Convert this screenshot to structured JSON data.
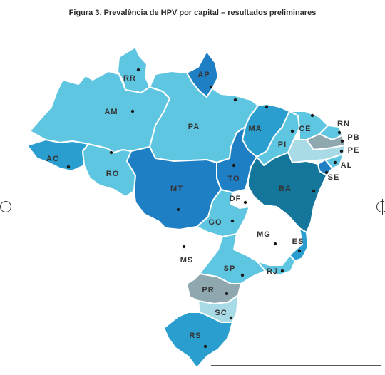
{
  "figure": {
    "title": "Figura 3. Prevalência de HPV por capital – resultados preliminares"
  },
  "colors": {
    "light": "#5fc6e1",
    "medium": "#2a9fcf",
    "dark": "#1f7fc4",
    "darkest": "#13769a",
    "gray": "#8fa8b0",
    "white": "#ffffff",
    "pale": "#a9dbe6"
  },
  "states": [
    {
      "abbr": "RR",
      "shade": "light"
    },
    {
      "abbr": "AP",
      "shade": "dark"
    },
    {
      "abbr": "AM",
      "shade": "light"
    },
    {
      "abbr": "PA",
      "shade": "light"
    },
    {
      "abbr": "MA",
      "shade": "medium"
    },
    {
      "abbr": "CE",
      "shade": "light"
    },
    {
      "abbr": "RN",
      "shade": "light"
    },
    {
      "abbr": "PB",
      "shade": "gray"
    },
    {
      "abbr": "PE",
      "shade": "pale"
    },
    {
      "abbr": "AL",
      "shade": "light"
    },
    {
      "abbr": "SE",
      "shade": "dark"
    },
    {
      "abbr": "PI",
      "shade": "light"
    },
    {
      "abbr": "AC",
      "shade": "medium"
    },
    {
      "abbr": "RO",
      "shade": "light"
    },
    {
      "abbr": "TO",
      "shade": "dark"
    },
    {
      "abbr": "MT",
      "shade": "dark"
    },
    {
      "abbr": "BA",
      "shade": "darkest"
    },
    {
      "abbr": "DF",
      "shade": "white"
    },
    {
      "abbr": "GO",
      "shade": "light"
    },
    {
      "abbr": "MG",
      "shade": "white"
    },
    {
      "abbr": "ES",
      "shade": "medium"
    },
    {
      "abbr": "MS",
      "shade": "white"
    },
    {
      "abbr": "SP",
      "shade": "light"
    },
    {
      "abbr": "RJ",
      "shade": "light"
    },
    {
      "abbr": "PR",
      "shade": "gray"
    },
    {
      "abbr": "SC",
      "shade": "pale"
    },
    {
      "abbr": "RS",
      "shade": "medium"
    }
  ]
}
